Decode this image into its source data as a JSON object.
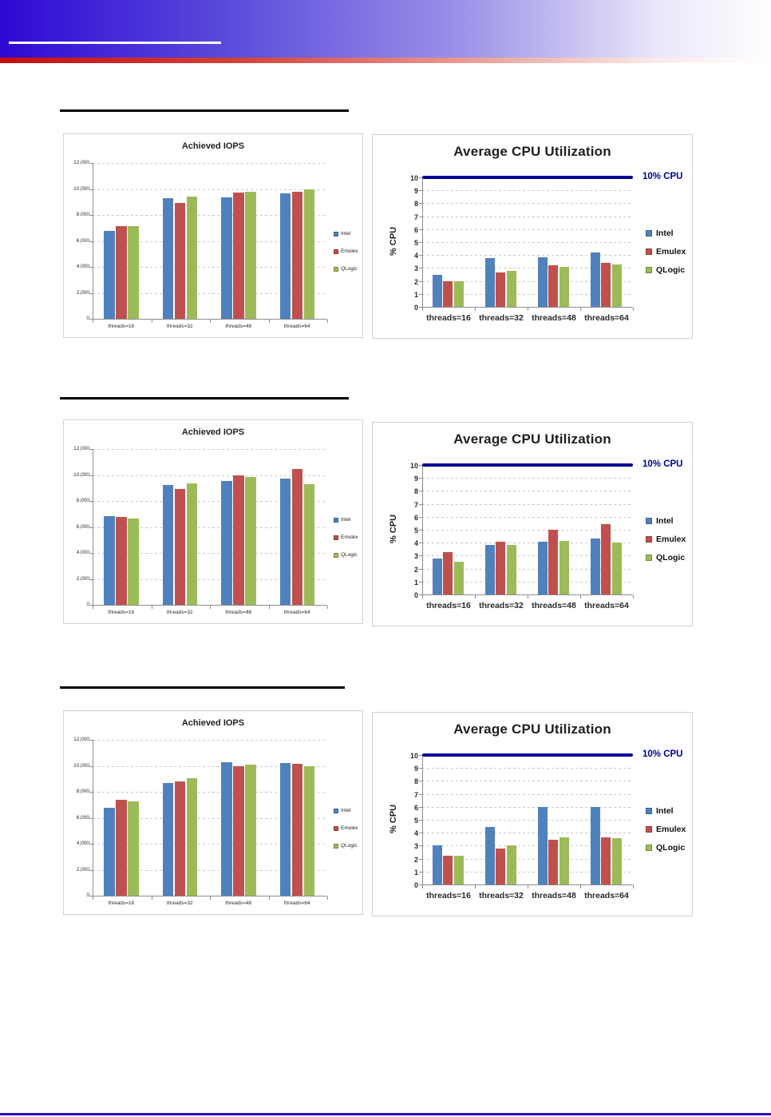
{
  "page": {
    "header": {
      "accent_blue": "#2e08d4",
      "accent_red": "#c50d0d",
      "underline_color": "#ffffff"
    },
    "footer": {
      "rule_color": "#2c0bc7"
    }
  },
  "series_colors": {
    "Intel": "#4F81BD",
    "Emulex": "#C0504D",
    "QLogic": "#9BBB59"
  },
  "chart_data": [
    {
      "id": "iops-section1",
      "kind": "iops",
      "type": "bar",
      "title": "Achieved IOPS",
      "categories": [
        "threads=16",
        "threads=32",
        "threads=48",
        "threads=64"
      ],
      "series": [
        {
          "name": "Intel",
          "values": [
            6800,
            9300,
            9350,
            9650
          ]
        },
        {
          "name": "Emulex",
          "values": [
            7150,
            8950,
            9750,
            9800
          ]
        },
        {
          "name": "QLogic",
          "values": [
            7150,
            9400,
            9800,
            10000
          ]
        }
      ],
      "xlabel": "",
      "ylabel": "",
      "ylim": [
        0,
        12000
      ],
      "ytick": 2000,
      "grid": true,
      "legend_position": "right"
    },
    {
      "id": "cpu-section1",
      "kind": "cpu",
      "type": "bar",
      "title": "Average CPU Utilization",
      "categories": [
        "threads=16",
        "threads=32",
        "threads=48",
        "threads=64"
      ],
      "series": [
        {
          "name": "Intel",
          "values": [
            2.5,
            3.75,
            3.85,
            4.2
          ]
        },
        {
          "name": "Emulex",
          "values": [
            2.0,
            2.65,
            3.2,
            3.4
          ]
        },
        {
          "name": "QLogic",
          "values": [
            1.95,
            2.8,
            3.1,
            3.3
          ]
        }
      ],
      "xlabel": "",
      "ylabel": "% CPU",
      "ylim": [
        0,
        10
      ],
      "ytick": 1,
      "grid": true,
      "legend_position": "right",
      "ref_line": {
        "value": 10,
        "label": "10% CPU",
        "color": "#000099"
      }
    },
    {
      "id": "iops-section2",
      "kind": "iops",
      "type": "bar",
      "title": "Achieved IOPS",
      "categories": [
        "threads=16",
        "threads=32",
        "threads=48",
        "threads=64"
      ],
      "series": [
        {
          "name": "Intel",
          "values": [
            6850,
            9250,
            9550,
            9700
          ]
        },
        {
          "name": "Emulex",
          "values": [
            6750,
            8900,
            10000,
            10450
          ]
        },
        {
          "name": "QLogic",
          "values": [
            6650,
            9350,
            9850,
            9300
          ]
        }
      ],
      "xlabel": "",
      "ylabel": "",
      "ylim": [
        0,
        12000
      ],
      "ytick": 2000,
      "grid": true,
      "legend_position": "right"
    },
    {
      "id": "cpu-section2",
      "kind": "cpu",
      "type": "bar",
      "title": "Average CPU Utilization",
      "categories": [
        "threads=16",
        "threads=32",
        "threads=48",
        "threads=64"
      ],
      "series": [
        {
          "name": "Intel",
          "values": [
            2.75,
            3.85,
            4.1,
            4.3
          ]
        },
        {
          "name": "Emulex",
          "values": [
            3.3,
            4.05,
            5.0,
            5.45
          ]
        },
        {
          "name": "QLogic",
          "values": [
            2.55,
            3.8,
            4.15,
            4.0
          ]
        }
      ],
      "xlabel": "",
      "ylabel": "% CPU",
      "ylim": [
        0,
        10
      ],
      "ytick": 1,
      "grid": true,
      "legend_position": "right",
      "ref_line": {
        "value": 10,
        "label": "10% CPU",
        "color": "#000099"
      }
    },
    {
      "id": "iops-section3",
      "kind": "iops",
      "type": "bar",
      "title": "Achieved IOPS",
      "categories": [
        "threads=16",
        "threads=32",
        "threads=48",
        "threads=64"
      ],
      "series": [
        {
          "name": "Intel",
          "values": [
            6750,
            8650,
            10250,
            10200
          ]
        },
        {
          "name": "Emulex",
          "values": [
            7400,
            8800,
            10000,
            10150
          ]
        },
        {
          "name": "QLogic",
          "values": [
            7250,
            9050,
            10100,
            10000
          ]
        }
      ],
      "xlabel": "",
      "ylabel": "",
      "ylim": [
        0,
        12000
      ],
      "ytick": 2000,
      "grid": true,
      "legend_position": "right"
    },
    {
      "id": "cpu-section3",
      "kind": "cpu",
      "type": "bar",
      "title": "Average CPU Utilization",
      "categories": [
        "threads=16",
        "threads=32",
        "threads=48",
        "threads=64"
      ],
      "series": [
        {
          "name": "Intel",
          "values": [
            3.0,
            4.45,
            6.0,
            6.0
          ]
        },
        {
          "name": "Emulex",
          "values": [
            2.2,
            2.8,
            3.45,
            3.65
          ]
        },
        {
          "name": "QLogic",
          "values": [
            2.2,
            3.0,
            3.65,
            3.55
          ]
        }
      ],
      "xlabel": "",
      "ylabel": "% CPU",
      "ylim": [
        0,
        10
      ],
      "ytick": 1,
      "grid": true,
      "legend_position": "right",
      "ref_line": {
        "value": 10,
        "label": "10% CPU",
        "color": "#000099"
      }
    }
  ]
}
